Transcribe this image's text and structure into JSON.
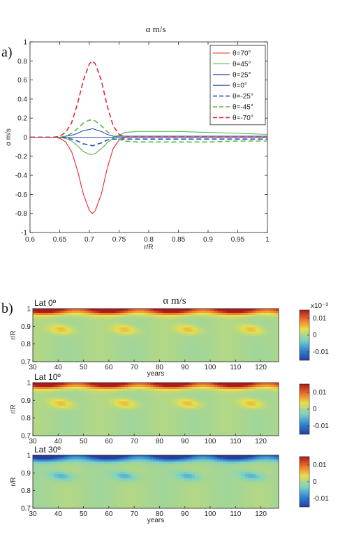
{
  "panel_a_label": "a)",
  "panel_b_label": "b)",
  "chart_data": [
    {
      "type": "line",
      "title": "α    m/s",
      "xlabel": "r/R",
      "ylabel": "α m/s",
      "xlim": [
        0.6,
        1.0
      ],
      "ylim": [
        -1,
        1
      ],
      "xticks": [
        "0.6",
        "0.65",
        "0.7",
        "0.75",
        "0.8",
        "0.85",
        "0.9",
        "0.95",
        "1"
      ],
      "yticks": [
        "1",
        "0.8",
        "0.6",
        "0.4",
        "0.2",
        "0",
        "-0.2",
        "-0.4",
        "-0.6",
        "-0.8",
        "-1"
      ],
      "legend_position": "top-right",
      "x": [
        0.6,
        0.62,
        0.64,
        0.65,
        0.66,
        0.67,
        0.68,
        0.69,
        0.7,
        0.705,
        0.71,
        0.72,
        0.73,
        0.74,
        0.75,
        0.76,
        0.78,
        0.8,
        0.85,
        0.9,
        0.95,
        1.0
      ],
      "series": [
        {
          "name": "θ=70°",
          "color": "#e8262a",
          "dash": "solid",
          "values": [
            0,
            0,
            0,
            -0.01,
            -0.05,
            -0.15,
            -0.35,
            -0.6,
            -0.77,
            -0.8,
            -0.77,
            -0.6,
            -0.33,
            -0.12,
            -0.03,
            0,
            0,
            0,
            0,
            0,
            0,
            0
          ]
        },
        {
          "name": "θ=45°",
          "color": "#58b84a",
          "dash": "solid",
          "values": [
            0,
            0,
            0,
            0,
            -0.01,
            -0.04,
            -0.09,
            -0.15,
            -0.18,
            -0.18,
            -0.17,
            -0.12,
            -0.06,
            -0.01,
            0.02,
            0.05,
            0.06,
            0.06,
            0.06,
            0.05,
            0.04,
            0.03
          ]
        },
        {
          "name": "θ=25°",
          "color": "#2a4fb5",
          "dash": "solid",
          "values": [
            0,
            0,
            0,
            0,
            0.01,
            0.02,
            0.04,
            0.07,
            0.08,
            0.09,
            0.08,
            0.06,
            0.03,
            0.01,
            0.01,
            0.01,
            0.01,
            0.01,
            0.01,
            0.01,
            0.01,
            0.01
          ]
        },
        {
          "name": "θ=0°",
          "color": "#2a4fb5",
          "dash": "solid",
          "values": [
            0,
            0,
            0,
            0,
            0,
            0,
            0,
            0,
            0,
            0,
            0,
            0,
            0,
            0,
            0,
            0,
            0,
            0,
            0,
            0,
            0,
            0
          ]
        },
        {
          "name": "θ=-25°",
          "color": "#2a4fb5",
          "dash": "dashed",
          "values": [
            0,
            0,
            0,
            0,
            -0.01,
            -0.02,
            -0.04,
            -0.07,
            -0.08,
            -0.09,
            -0.08,
            -0.06,
            -0.03,
            -0.02,
            -0.02,
            -0.02,
            -0.02,
            -0.02,
            -0.02,
            -0.02,
            -0.02,
            -0.02
          ]
        },
        {
          "name": "θ=-45°",
          "color": "#58b84a",
          "dash": "dashed",
          "values": [
            0,
            0,
            0,
            0,
            0.01,
            0.04,
            0.09,
            0.15,
            0.18,
            0.18,
            0.17,
            0.12,
            0.06,
            0.01,
            -0.02,
            -0.04,
            -0.05,
            -0.05,
            -0.05,
            -0.05,
            -0.04,
            -0.04
          ]
        },
        {
          "name": "θ=-70°",
          "color": "#e8262a",
          "dash": "dashed",
          "values": [
            0,
            0,
            0,
            0.01,
            0.05,
            0.15,
            0.35,
            0.6,
            0.77,
            0.8,
            0.77,
            0.6,
            0.33,
            0.12,
            0.03,
            0,
            0,
            0,
            0,
            0,
            0,
            0
          ]
        }
      ]
    },
    {
      "type": "heatmap",
      "title": "α    m/s",
      "xlabel": "years",
      "ylabel": "r/R",
      "xlim": [
        30,
        127
      ],
      "ylim": [
        0.7,
        1.0
      ],
      "xticks": [
        "30",
        "40",
        "50",
        "60",
        "70",
        "80",
        "90",
        "100",
        "110",
        "120"
      ],
      "yticks": [
        "1",
        "0.9",
        "0.8",
        "0.7"
      ],
      "colorbar": {
        "ticks": [
          "0.01",
          "0",
          "-0.01"
        ],
        "exponent": "x10⁻³",
        "range": [
          -0.015,
          0.015
        ]
      },
      "period_years": 25,
      "panels": [
        {
          "label": "Lat 0º",
          "sign": 1,
          "show_xlabel": true
        },
        {
          "label": "Lat 10º",
          "sign": 1,
          "show_xlabel": false
        },
        {
          "label": "Lat 30º",
          "sign": -1,
          "show_xlabel": true
        }
      ]
    }
  ]
}
